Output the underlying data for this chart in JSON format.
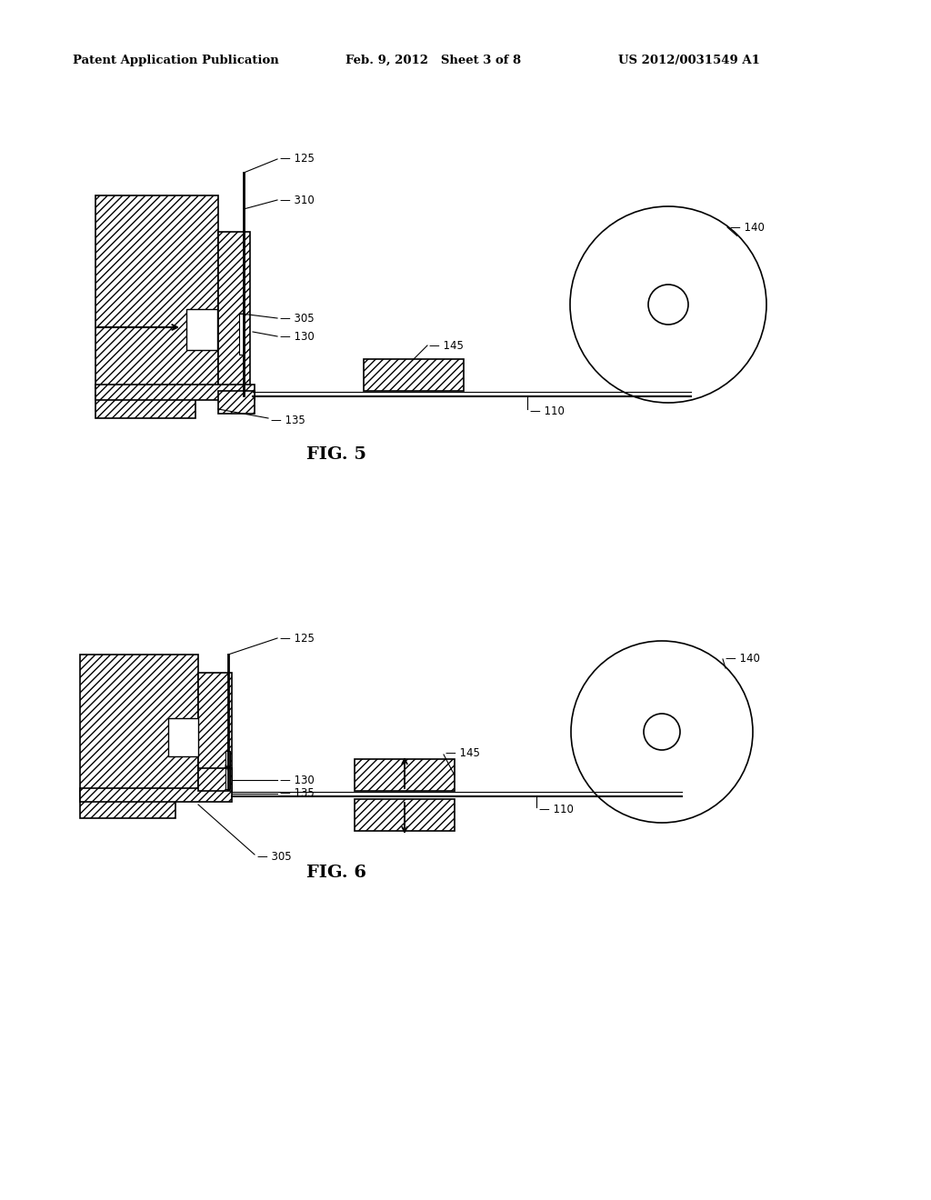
{
  "bg_color": "#ffffff",
  "line_color": "#000000",
  "header_left": "Patent Application Publication",
  "header_center": "Feb. 9, 2012   Sheet 3 of 8",
  "header_right": "US 2012/0031549 A1",
  "fig5_label": "FIG. 5",
  "fig6_label": "FIG. 6"
}
